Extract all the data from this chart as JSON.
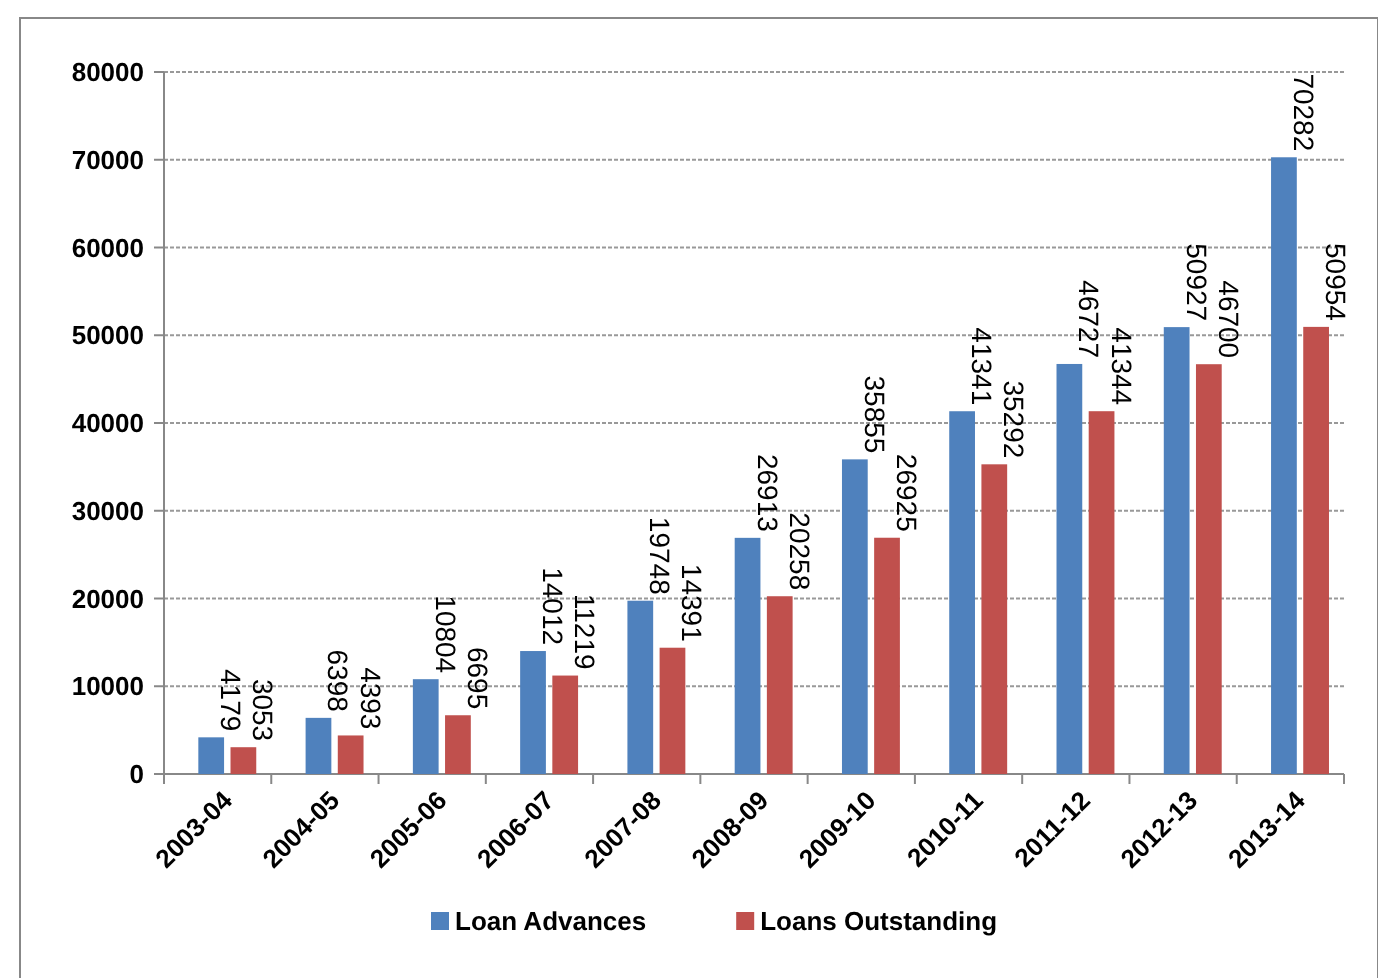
{
  "chart_data": {
    "type": "bar",
    "categories": [
      "2003-04",
      "2004-05",
      "2005-06",
      "2006-07",
      "2007-08",
      "2008-09",
      "2009-10",
      "2010-11",
      "2011-12",
      "2012-13",
      "2013-14"
    ],
    "series": [
      {
        "name": "Loan Advances",
        "color": "#4f81bd",
        "values": [
          4179,
          6398,
          10804,
          14012,
          19748,
          26913,
          35855,
          41341,
          46727,
          50927,
          70282
        ]
      },
      {
        "name": "Loans Outstanding",
        "color": "#c0504d",
        "values": [
          3053,
          4393,
          6695,
          11219,
          14391,
          20258,
          26925,
          35292,
          41344,
          46700,
          50954
        ]
      }
    ],
    "ylim": [
      0,
      80000
    ],
    "yticks": [
      0,
      10000,
      20000,
      30000,
      40000,
      50000,
      60000,
      70000,
      80000
    ],
    "grid": "y",
    "legend": "bottom",
    "data_labels": true
  }
}
